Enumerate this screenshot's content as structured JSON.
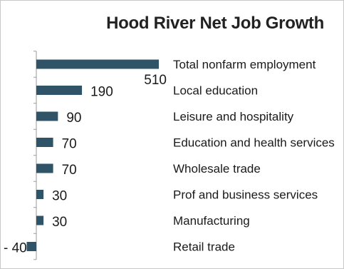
{
  "chart_data": {
    "type": "bar",
    "orientation": "horizontal",
    "title": "Hood River Net Job Growth",
    "categories": [
      "Total nonfarm employment",
      "Local education",
      "Leisure and hospitality",
      "Education and health services",
      "Wholesale trade",
      "Prof and business services",
      "Manufacturing",
      "Retail trade"
    ],
    "values": [
      510,
      190,
      90,
      70,
      70,
      30,
      30,
      -40
    ],
    "data_labels": [
      "510",
      "190",
      "90",
      "70",
      "70",
      "30",
      "30",
      "- 40"
    ],
    "bar_color": "#2f5468",
    "grid": false,
    "legend": "none"
  }
}
